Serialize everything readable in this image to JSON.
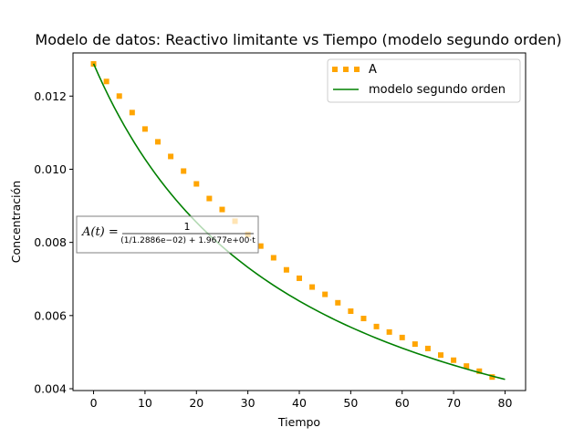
{
  "chart_data": {
    "type": "scatter",
    "title": "Modelo de datos: Reactivo limitante vs Tiempo (modelo segundo orden)",
    "xlabel": "Tiempo",
    "ylabel": "Concentración",
    "xlim": [
      -4,
      84
    ],
    "ylim": [
      0.00395,
      0.01318
    ],
    "xticks": [
      0,
      10,
      20,
      30,
      40,
      50,
      60,
      70,
      80
    ],
    "yticks": [
      0.004,
      0.006,
      0.008,
      0.01,
      0.012
    ],
    "ytick_labels": [
      "0.004",
      "0.006",
      "0.008",
      "0.010",
      "0.012"
    ],
    "grid": false,
    "legend_position": "upper right",
    "series": [
      {
        "name": "A",
        "kind": "markers",
        "color": "#FFA500",
        "marker": "square",
        "x": [
          0,
          2.5,
          5,
          7.5,
          10,
          12.5,
          15,
          17.5,
          20,
          22.5,
          25,
          27.5,
          30,
          32.5,
          35,
          37.5,
          40,
          42.5,
          45,
          47.5,
          50,
          52.5,
          55,
          57.5,
          60,
          62.5,
          65,
          67.5,
          70,
          72.5,
          75,
          77.5
        ],
        "y": [
          0.01288,
          0.0124,
          0.012,
          0.01155,
          0.0111,
          0.01075,
          0.01035,
          0.00995,
          0.0096,
          0.0092,
          0.0089,
          0.00858,
          0.00822,
          0.0079,
          0.00758,
          0.00725,
          0.00702,
          0.00678,
          0.00658,
          0.00635,
          0.00612,
          0.00592,
          0.0057,
          0.00555,
          0.0054,
          0.00522,
          0.0051,
          0.00492,
          0.00478,
          0.00462,
          0.00448,
          0.00432
        ]
      },
      {
        "name": "modelo segundo orden",
        "kind": "line",
        "color": "#008000",
        "model": {
          "A0": 0.012886,
          "k": 1.9677
        }
      }
    ],
    "annotation": {
      "lhs": "A(t) =",
      "numerator": "1",
      "denominator": "(1/1.2886e−02) + 1.9677e+00·t"
    }
  }
}
